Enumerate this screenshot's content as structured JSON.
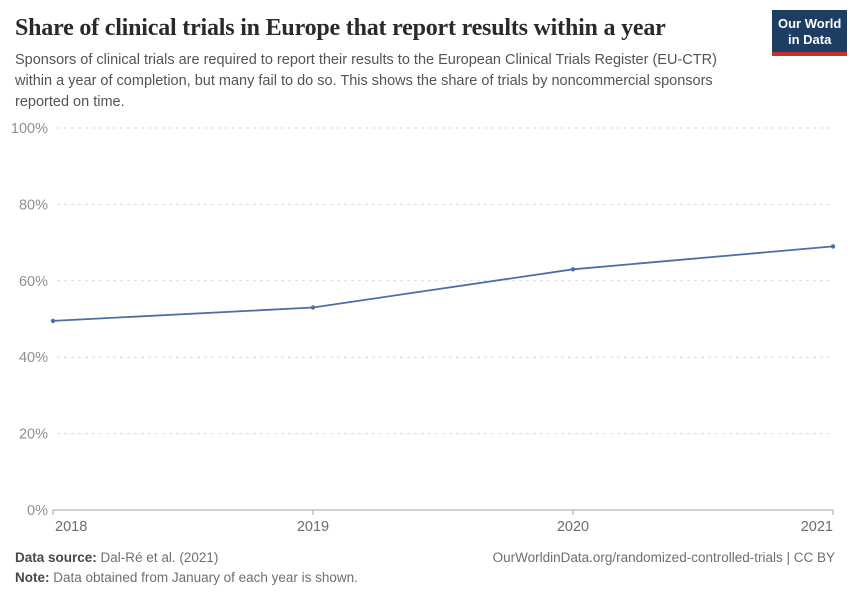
{
  "header": {
    "title": "Share of clinical trials in Europe that report results within a year",
    "subtitle": "Sponsors of clinical trials are required to report their results to the European Clinical Trials Register (EU-CTR) within a year of completion, but many fail to do so. This shows the share of trials by noncommercial sponsors reported on time.",
    "logo": {
      "line1": "Our World",
      "line2": "in Data"
    }
  },
  "chart_data": {
    "type": "line",
    "title": "Share of clinical trials in Europe that report results within a year",
    "x": [
      2018,
      2019,
      2020,
      2021
    ],
    "x_tick_labels": [
      "2018",
      "2019",
      "2020",
      "2021"
    ],
    "series": [
      {
        "name": "Share of trials by noncommercial sponsors reported on time",
        "values": [
          49.5,
          53,
          63,
          69
        ]
      }
    ],
    "xlabel": "",
    "ylabel": "",
    "ylim": [
      0,
      100
    ],
    "y_ticks": [
      "0%",
      "20%",
      "40%",
      "60%",
      "80%",
      "100%"
    ],
    "grid": "horizontal-dashed",
    "legend": "none",
    "line_color": "#4c6fa5",
    "gridline_color": "#dadada",
    "axis_color": "#a3a3a3"
  },
  "footer": {
    "data_source_label": "Data source:",
    "data_source_value": "Dal-Ré et al. (2021)",
    "note_label": "Note:",
    "note_value": "Data obtained from January of each year is shown.",
    "link": "OurWorldinData.org/randomized-controlled-trials | CC BY"
  },
  "colors": {
    "logo_background": "#1d3d63",
    "logo_stripe": "#c2332f",
    "title_text": "#2a2a2a",
    "subtitle_text": "#545454",
    "footer_text": "#6f6f6f"
  }
}
